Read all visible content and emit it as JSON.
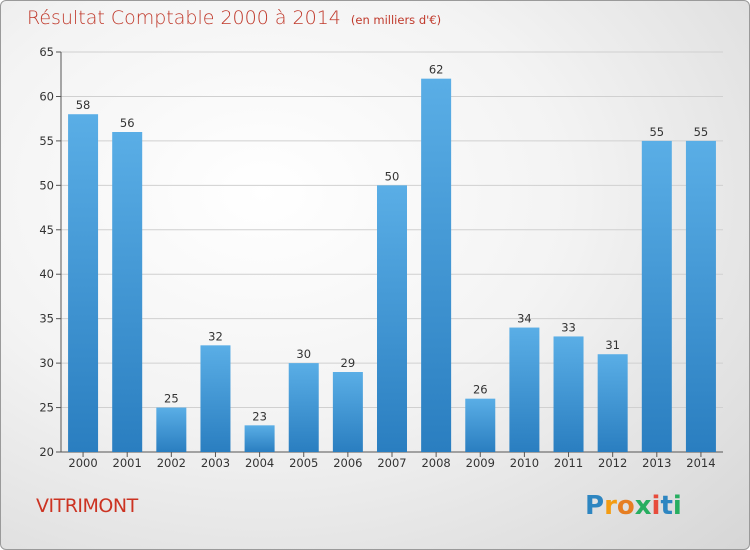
{
  "title": "Résultat Comptable 2000 à 2014",
  "subtitle": "(en milliers d'€)",
  "commune": "VITRIMONT",
  "logo": {
    "text": "Proxiti",
    "letters": [
      {
        "ch": "P",
        "color": "#2e86c1"
      },
      {
        "ch": "r",
        "color": "#f39c12"
      },
      {
        "ch": "o",
        "color": "#e67e22"
      },
      {
        "ch": "x",
        "color": "#27ae60"
      },
      {
        "ch": "i",
        "color": "#e74c3c"
      },
      {
        "ch": "t",
        "color": "#2e86c1"
      },
      {
        "ch": "i",
        "color": "#27ae60"
      }
    ]
  },
  "colors": {
    "bar_top": "#5aaee6",
    "bar_bottom": "#2a7ec0",
    "grid": "#d0d0d0",
    "title": "#c0392b"
  },
  "chart_data": {
    "type": "bar",
    "categories": [
      "2000",
      "2001",
      "2002",
      "2003",
      "2004",
      "2005",
      "2006",
      "2007",
      "2008",
      "2009",
      "2010",
      "2011",
      "2012",
      "2013",
      "2014"
    ],
    "values": [
      58,
      56,
      25,
      32,
      23,
      30,
      29,
      50,
      62,
      26,
      34,
      33,
      31,
      55,
      55
    ],
    "ylim": [
      20,
      65
    ],
    "yticks": [
      20,
      25,
      30,
      35,
      40,
      45,
      50,
      55,
      60,
      65
    ],
    "grid": true
  }
}
